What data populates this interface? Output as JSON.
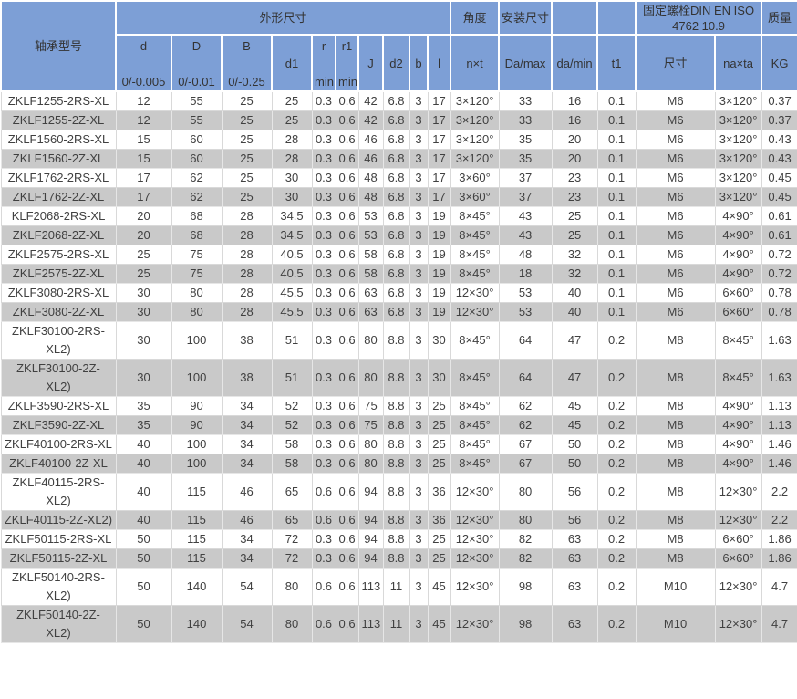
{
  "accent_colors": {
    "header_bg": "#7d9fd6",
    "alt_row_bg": "#c9c9c9",
    "row_bg": "#ffffff",
    "text": "#404040",
    "grid": "#d9d9d9"
  },
  "header": {
    "model": "轴承型号",
    "groups": {
      "dims": "外形尺寸",
      "angle": "角度",
      "mount": "安装尺寸",
      "bolt": "固定螺栓DIN EN ISO 4762  10.9",
      "mass": "质量"
    },
    "cols": {
      "d": {
        "label": "d",
        "sub": "0/-0.005"
      },
      "D": {
        "label": "D",
        "sub": "0/-0.01"
      },
      "B": {
        "label": "B",
        "sub": "0/-0.25"
      },
      "d1": {
        "label": "d1"
      },
      "r": {
        "label": "r",
        "sub": "min"
      },
      "r1": {
        "label": "r1",
        "sub": "min"
      },
      "J": {
        "label": "J"
      },
      "d2": {
        "label": "d2"
      },
      "b": {
        "label": "b"
      },
      "l": {
        "label": "l"
      },
      "nxt": {
        "label": "n×t"
      },
      "Da_max": {
        "label": "Da/max"
      },
      "da_min": {
        "label": "da/min"
      },
      "t1": {
        "label": "t1"
      },
      "size": {
        "label": "尺寸"
      },
      "naxta": {
        "label": "na×ta"
      },
      "kg": {
        "label": "KG"
      }
    }
  },
  "table": {
    "column_keys": [
      "model",
      "d",
      "D",
      "B",
      "d1",
      "r",
      "r1",
      "J",
      "d2",
      "b",
      "l",
      "nxt",
      "Da_max",
      "da_min",
      "t1",
      "size",
      "naxta",
      "kg"
    ],
    "rows": [
      [
        "ZKLF1255-2RS-XL",
        "12",
        "55",
        "25",
        "25",
        "0.3",
        "0.6",
        "42",
        "6.8",
        "3",
        "17",
        "3×120°",
        "33",
        "16",
        "0.1",
        "M6",
        "3×120°",
        "0.37"
      ],
      [
        "ZKLF1255-2Z-XL",
        "12",
        "55",
        "25",
        "25",
        "0.3",
        "0.6",
        "42",
        "6.8",
        "3",
        "17",
        "3×120°",
        "33",
        "16",
        "0.1",
        "M6",
        "3×120°",
        "0.37"
      ],
      [
        "ZKLF1560-2RS-XL",
        "15",
        "60",
        "25",
        "28",
        "0.3",
        "0.6",
        "46",
        "6.8",
        "3",
        "17",
        "3×120°",
        "35",
        "20",
        "0.1",
        "M6",
        "3×120°",
        "0.43"
      ],
      [
        "ZKLF1560-2Z-XL",
        "15",
        "60",
        "25",
        "28",
        "0.3",
        "0.6",
        "46",
        "6.8",
        "3",
        "17",
        "3×120°",
        "35",
        "20",
        "0.1",
        "M6",
        "3×120°",
        "0.43"
      ],
      [
        "ZKLF1762-2RS-XL",
        "17",
        "62",
        "25",
        "30",
        "0.3",
        "0.6",
        "48",
        "6.8",
        "3",
        "17",
        "3×60°",
        "37",
        "23",
        "0.1",
        "M6",
        "3×120°",
        "0.45"
      ],
      [
        "ZKLF1762-2Z-XL",
        "17",
        "62",
        "25",
        "30",
        "0.3",
        "0.6",
        "48",
        "6.8",
        "3",
        "17",
        "3×60°",
        "37",
        "23",
        "0.1",
        "M6",
        "3×120°",
        "0.45"
      ],
      [
        "KLF2068-2RS-XL",
        "20",
        "68",
        "28",
        "34.5",
        "0.3",
        "0.6",
        "53",
        "6.8",
        "3",
        "19",
        "8×45°",
        "43",
        "25",
        "0.1",
        "M6",
        "4×90°",
        "0.61"
      ],
      [
        "ZKLF2068-2Z-XL",
        "20",
        "68",
        "28",
        "34.5",
        "0.3",
        "0.6",
        "53",
        "6.8",
        "3",
        "19",
        "8×45°",
        "43",
        "25",
        "0.1",
        "M6",
        "4×90°",
        "0.61"
      ],
      [
        "ZKLF2575-2RS-XL",
        "25",
        "75",
        "28",
        "40.5",
        "0.3",
        "0.6",
        "58",
        "6.8",
        "3",
        "19",
        "8×45°",
        "48",
        "32",
        "0.1",
        "M6",
        "4×90°",
        "0.72"
      ],
      [
        "ZKLF2575-2Z-XL",
        "25",
        "75",
        "28",
        "40.5",
        "0.3",
        "0.6",
        "58",
        "6.8",
        "3",
        "19",
        "8×45°",
        "18",
        "32",
        "0.1",
        "M6",
        "4×90°",
        "0.72"
      ],
      [
        "ZKLF3080-2RS-XL",
        "30",
        "80",
        "28",
        "45.5",
        "0.3",
        "0.6",
        "63",
        "6.8",
        "3",
        "19",
        "12×30°",
        "53",
        "40",
        "0.1",
        "M6",
        "6×60°",
        "0.78"
      ],
      [
        "ZKLF3080-2Z-XL",
        "30",
        "80",
        "28",
        "45.5",
        "0.3",
        "0.6",
        "63",
        "6.8",
        "3",
        "19",
        "12×30°",
        "53",
        "40",
        "0.1",
        "M6",
        "6×60°",
        "0.78"
      ],
      [
        "ZKLF30100-2RS-XL2)",
        "30",
        "100",
        "38",
        "51",
        "0.3",
        "0.6",
        "80",
        "8.8",
        "3",
        "30",
        "8×45°",
        "64",
        "47",
        "0.2",
        "M8",
        "8×45°",
        "1.63"
      ],
      [
        "ZKLF30100-2Z-XL2)",
        "30",
        "100",
        "38",
        "51",
        "0.3",
        "0.6",
        "80",
        "8.8",
        "3",
        "30",
        "8×45°",
        "64",
        "47",
        "0.2",
        "M8",
        "8×45°",
        "1.63"
      ],
      [
        "ZKLF3590-2RS-XL",
        "35",
        "90",
        "34",
        "52",
        "0.3",
        "0.6",
        "75",
        "8.8",
        "3",
        "25",
        "8×45°",
        "62",
        "45",
        "0.2",
        "M8",
        "4×90°",
        "1.13"
      ],
      [
        "ZKLF3590-2Z-XL",
        "35",
        "90",
        "34",
        "52",
        "0.3",
        "0.6",
        "75",
        "8.8",
        "3",
        "25",
        "8×45°",
        "62",
        "45",
        "0.2",
        "M8",
        "4×90°",
        "1.13"
      ],
      [
        "ZKLF40100-2RS-XL",
        "40",
        "100",
        "34",
        "58",
        "0.3",
        "0.6",
        "80",
        "8.8",
        "3",
        "25",
        "8×45°",
        "67",
        "50",
        "0.2",
        "M8",
        "4×90°",
        "1.46"
      ],
      [
        "ZKLF40100-2Z-XL",
        "40",
        "100",
        "34",
        "58",
        "0.3",
        "0.6",
        "80",
        "8.8",
        "3",
        "25",
        "8×45°",
        "67",
        "50",
        "0.2",
        "M8",
        "4×90°",
        "1.46"
      ],
      [
        "ZKLF40115-2RS-XL2)",
        "40",
        "115",
        "46",
        "65",
        "0.6",
        "0.6",
        "94",
        "8.8",
        "3",
        "36",
        "12×30°",
        "80",
        "56",
        "0.2",
        "M8",
        "12×30°",
        "2.2"
      ],
      [
        "ZKLF40115-2Z-XL2)",
        "40",
        "115",
        "46",
        "65",
        "0.6",
        "0.6",
        "94",
        "8.8",
        "3",
        "36",
        "12×30°",
        "80",
        "56",
        "0.2",
        "M8",
        "12×30°",
        "2.2"
      ],
      [
        "ZKLF50115-2RS-XL",
        "50",
        "115",
        "34",
        "72",
        "0.3",
        "0.6",
        "94",
        "8.8",
        "3",
        "25",
        "12×30°",
        "82",
        "63",
        "0.2",
        "M8",
        "6×60°",
        "1.86"
      ],
      [
        "ZKLF50115-2Z-XL",
        "50",
        "115",
        "34",
        "72",
        "0.3",
        "0.6",
        "94",
        "8.8",
        "3",
        "25",
        "12×30°",
        "82",
        "63",
        "0.2",
        "M8",
        "6×60°",
        "1.86"
      ],
      [
        "ZKLF50140-2RS-XL2)",
        "50",
        "140",
        "54",
        "80",
        "0.6",
        "0.6",
        "113",
        "11",
        "3",
        "45",
        "12×30°",
        "98",
        "63",
        "0.2",
        "M10",
        "12×30°",
        "4.7"
      ],
      [
        "ZKLF50140-2Z-XL2)",
        "50",
        "140",
        "54",
        "80",
        "0.6",
        "0.6",
        "113",
        "11",
        "3",
        "45",
        "12×30°",
        "98",
        "63",
        "0.2",
        "M10",
        "12×30°",
        "4.7"
      ]
    ]
  }
}
